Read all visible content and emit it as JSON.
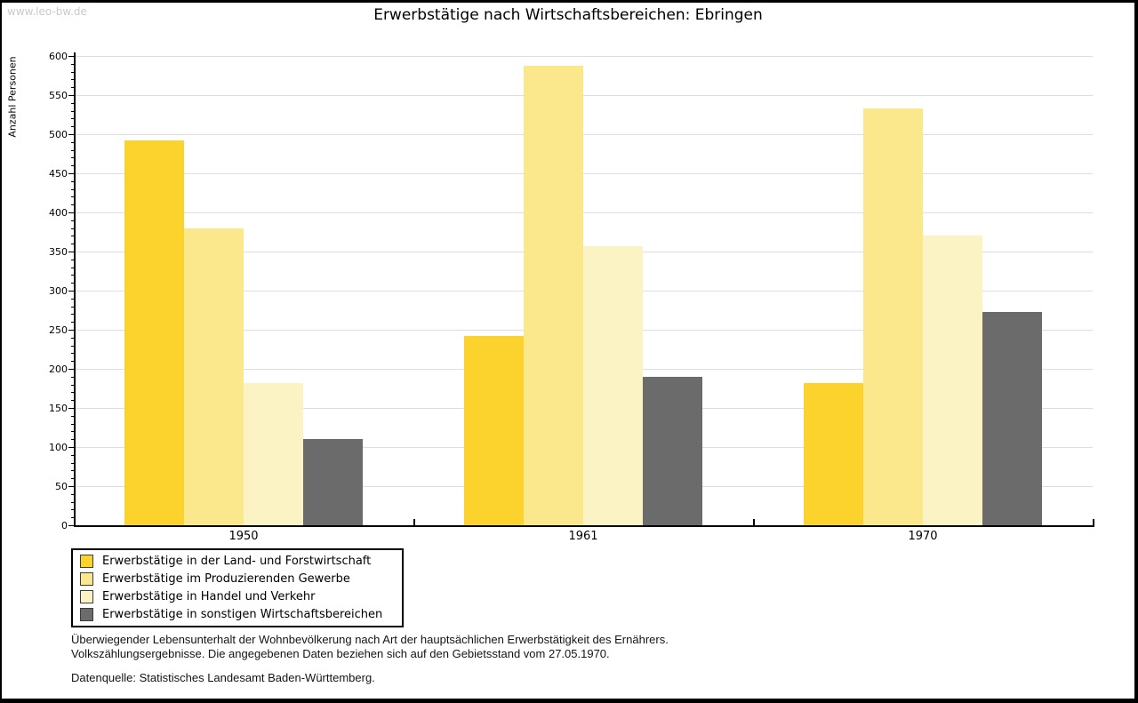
{
  "watermark": "www.leo-bw.de",
  "chart_data": {
    "type": "bar",
    "title": "Erwerbstätige nach Wirtschaftsbereichen: Ebringen",
    "ylabel": "Anzahl Personen",
    "categories": [
      "1950",
      "1961",
      "1970"
    ],
    "series": [
      {
        "name": "Erwerbstätige in der Land- und Forstwirtschaft",
        "color": "#FBD32C",
        "values": [
          492,
          242,
          182
        ]
      },
      {
        "name": "Erwerbstätige im Produzierenden Gewerbe",
        "color": "#FBE78C",
        "values": [
          379,
          588,
          533
        ]
      },
      {
        "name": "Erwerbstätige in Handel und Verkehr",
        "color": "#FCF3C4",
        "values": [
          182,
          357,
          371
        ]
      },
      {
        "name": "Erwerbstätige in sonstigen Wirtschaftsbereichen",
        "color": "#6B6B6B",
        "values": [
          110,
          190,
          273
        ]
      }
    ],
    "ylim": [
      0,
      600
    ],
    "ytick_step": 50,
    "ytick_minor_step": 10,
    "yticks": [
      "0",
      "50",
      "100",
      "150",
      "200",
      "250",
      "300",
      "350",
      "400",
      "450",
      "500",
      "550",
      "600"
    ],
    "grid": true,
    "legend_position": "bottom-left"
  },
  "footer": {
    "line1": "Überwiegender Lebensunterhalt der Wohnbevölkerung nach Art der hauptsächlichen Erwerbstätigkeit des Ernährers.",
    "line2": "Volkszählungsergebnisse. Die angegebenen Daten beziehen sich auf den Gebietsstand vom 27.05.1970.",
    "source": "Datenquelle: Statistisches Landesamt Baden-Württemberg."
  },
  "colors": {
    "grid": "#DEDEDE",
    "axis": "#000000",
    "watermark": "#C9C9C9",
    "text": "#000000"
  }
}
